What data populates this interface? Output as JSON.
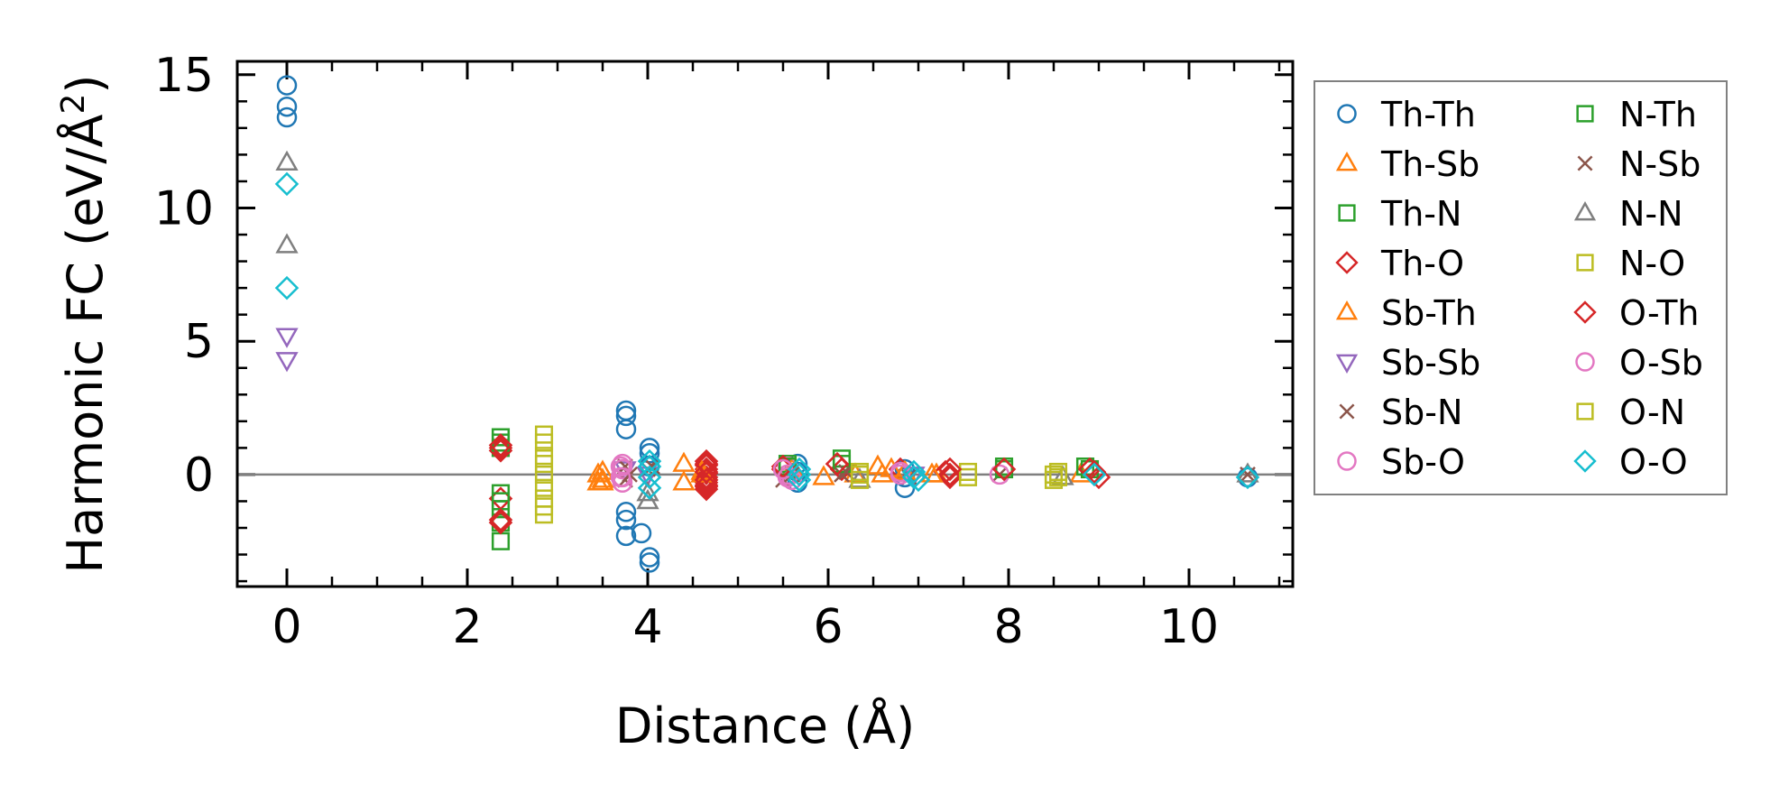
{
  "chart_data": {
    "type": "scatter",
    "title": "",
    "xlabel": "Distance (Å)",
    "ylabel_main": "Harmonic FC (eV/Å",
    "ylabel_sup": "2",
    "ylabel_close": ")",
    "xlim": [
      -0.55,
      11.15
    ],
    "ylim": [
      -4.2,
      15.5
    ],
    "xticks": [
      0,
      2,
      4,
      6,
      8,
      10
    ],
    "yticks": [
      0,
      5,
      10,
      15
    ],
    "xtick_labels": [
      "0",
      "2",
      "4",
      "6",
      "8",
      "10"
    ],
    "ytick_labels": [
      "0",
      "5",
      "10",
      "15"
    ],
    "reference_line_y": 0,
    "legend_position": "outside-right",
    "legend_columns": 2,
    "series": [
      {
        "name": "Th-Th",
        "marker": "circle",
        "color": "#1f77b4",
        "x": [
          0,
          0,
          0,
          3.76,
          3.76,
          3.76,
          3.76,
          3.76,
          3.76,
          3.93,
          4.02,
          4.02,
          4.02,
          4.02,
          4.02,
          5.66,
          5.66,
          5.66,
          6.85,
          6.85,
          6.85,
          10.65
        ],
        "y": [
          14.6,
          13.8,
          13.4,
          2.4,
          2.2,
          1.7,
          -1.4,
          -1.7,
          -2.3,
          -2.2,
          1.0,
          0.8,
          0.3,
          -3.1,
          -3.3,
          0.4,
          0.1,
          -0.3,
          0.2,
          -0.1,
          -0.5,
          -0.1
        ]
      },
      {
        "name": "Th-Sb",
        "marker": "triangle-up",
        "color": "#ff7f0e",
        "x": [
          3.45,
          3.45,
          3.5,
          4.4,
          4.4,
          5.6,
          5.95,
          6.3,
          6.55,
          6.6,
          7.2,
          8.8
        ],
        "y": [
          0.0,
          -0.3,
          0.1,
          0.4,
          -0.3,
          0.2,
          -0.1,
          0.0,
          0.3,
          0.0,
          0.0,
          0.0
        ]
      },
      {
        "name": "Th-N",
        "marker": "square",
        "color": "#2ca02c",
        "x": [
          2.37,
          2.37,
          2.37,
          2.37,
          2.37,
          2.37,
          5.55,
          6.15,
          7.95,
          8.85,
          8.9
        ],
        "y": [
          1.4,
          1.0,
          -0.7,
          -1.3,
          -1.8,
          -2.5,
          0.4,
          0.6,
          0.3,
          0.3,
          0.2
        ]
      },
      {
        "name": "Th-O",
        "marker": "diamond",
        "color": "#d62728",
        "x": [
          2.37,
          2.37,
          2.37,
          2.37,
          4.65,
          4.65,
          4.65,
          4.65,
          4.65,
          4.65,
          4.65,
          4.65,
          4.65,
          5.5,
          6.15,
          6.8,
          7.3,
          7.35,
          7.35,
          8.9,
          9.0
        ],
        "y": [
          1.0,
          0.9,
          -0.9,
          -1.8,
          0.5,
          0.35,
          0.2,
          0.05,
          -0.1,
          -0.2,
          -0.3,
          -0.45,
          -0.55,
          0.2,
          0.2,
          0.2,
          0.1,
          0.0,
          -0.1,
          0.2,
          -0.1
        ]
      },
      {
        "name": "Sb-Th",
        "marker": "triangle-up",
        "color": "#ff7f0e",
        "x": [
          3.5,
          3.5,
          4.6,
          4.6,
          6.7,
          6.85,
          7.15
        ],
        "y": [
          -0.2,
          -0.3,
          0.1,
          0.0,
          0.2,
          0.1,
          0.0
        ]
      },
      {
        "name": "Sb-Sb",
        "marker": "triangle-down",
        "color": "#9467bd",
        "x": [
          0,
          0,
          3.75,
          4.0,
          6.95
        ],
        "y": [
          5.2,
          4.3,
          0.2,
          0.0,
          0.0
        ]
      },
      {
        "name": "Sb-N",
        "marker": "x",
        "color": "#8c564b",
        "x": [
          3.75,
          3.75,
          4.0,
          5.5,
          6.15,
          6.9,
          7.9,
          10.65
        ],
        "y": [
          0.3,
          -0.2,
          0.2,
          -0.2,
          0.0,
          -0.1,
          0.0,
          0.0
        ]
      },
      {
        "name": "Sb-O",
        "marker": "circle",
        "color": "#e377c2",
        "x": [
          3.72,
          3.72,
          3.72,
          3.72,
          5.55,
          5.55,
          5.6,
          6.8,
          7.9
        ],
        "y": [
          0.4,
          0.2,
          -0.1,
          -0.3,
          0.3,
          0.0,
          -0.2,
          0.1,
          0.0
        ]
      },
      {
        "name": "N-Th",
        "marker": "square",
        "color": "#2ca02c",
        "x": [
          2.37,
          2.37,
          5.55,
          6.15,
          7.95
        ],
        "y": [
          1.2,
          -1.0,
          0.3,
          0.4,
          0.2
        ]
      },
      {
        "name": "N-Sb",
        "marker": "x",
        "color": "#8c564b",
        "x": [
          3.8,
          4.05,
          5.6,
          6.2
        ],
        "y": [
          0.0,
          0.3,
          0.0,
          0.1
        ]
      },
      {
        "name": "N-N",
        "marker": "triangle-up",
        "color": "#7f7f7f",
        "x": [
          0,
          0,
          4.0,
          4.0,
          6.35,
          8.6,
          10.65
        ],
        "y": [
          11.7,
          8.6,
          -0.7,
          -1.0,
          -0.2,
          -0.1,
          0.0
        ]
      },
      {
        "name": "N-O",
        "marker": "square",
        "color": "#bcbd22",
        "x": [
          2.85,
          2.85,
          2.85,
          2.85,
          2.85,
          2.85,
          2.85,
          6.35,
          6.35,
          7.55,
          7.55,
          8.55,
          8.55
        ],
        "y": [
          1.5,
          0.7,
          0.4,
          0.0,
          -0.5,
          -0.9,
          -1.5,
          0.1,
          -0.2,
          0.1,
          -0.1,
          0.1,
          -0.1
        ]
      },
      {
        "name": "O-Th",
        "marker": "diamond",
        "color": "#d62728",
        "x": [
          2.37,
          2.37,
          4.65,
          4.65,
          4.65,
          4.65,
          5.5,
          6.1,
          7.35,
          7.95,
          8.95
        ],
        "y": [
          1.1,
          -1.7,
          0.4,
          0.1,
          -0.2,
          -0.4,
          0.3,
          0.4,
          0.2,
          0.2,
          0.1
        ]
      },
      {
        "name": "O-Sb",
        "marker": "circle",
        "color": "#e377c2",
        "x": [
          3.7,
          3.7,
          5.5,
          5.55,
          6.8
        ],
        "y": [
          0.3,
          -0.1,
          0.2,
          -0.1,
          0.0
        ]
      },
      {
        "name": "O-N",
        "marker": "square",
        "color": "#bcbd22",
        "x": [
          2.85,
          2.85,
          6.35,
          8.5,
          8.5
        ],
        "y": [
          1.2,
          -1.2,
          0.0,
          0.0,
          -0.2
        ]
      },
      {
        "name": "O-O",
        "marker": "diamond",
        "color": "#17becf",
        "x": [
          0,
          0,
          4.02,
          4.02,
          4.02,
          4.02,
          5.68,
          5.68,
          5.68,
          6.95,
          6.95,
          7.0,
          8.95,
          10.65
        ],
        "y": [
          10.9,
          7.0,
          0.5,
          0.3,
          -0.1,
          -0.5,
          0.2,
          0.0,
          -0.2,
          0.1,
          -0.1,
          -0.2,
          0.0,
          -0.1
        ]
      }
    ]
  }
}
